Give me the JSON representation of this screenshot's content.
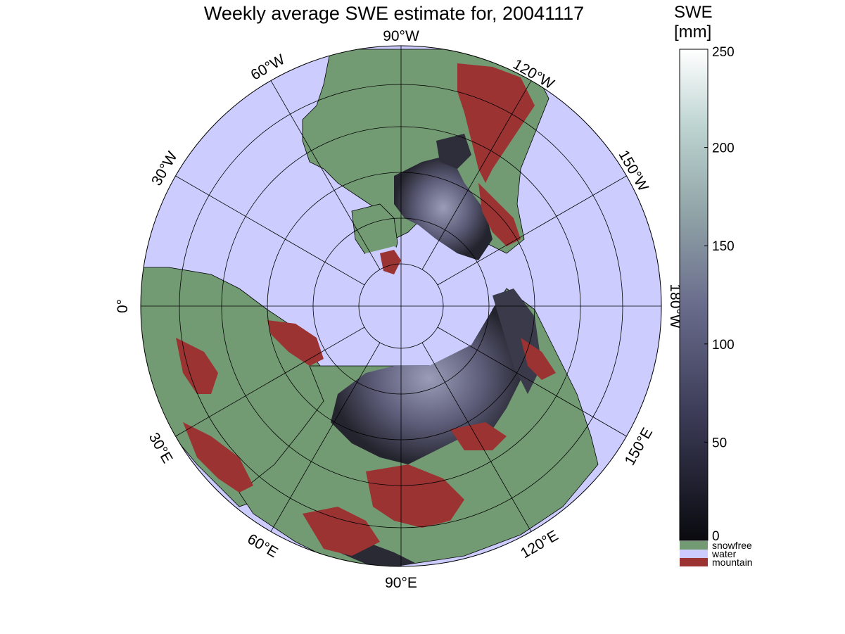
{
  "title": "Weekly average SWE estimate for, 20041117",
  "colorbar": {
    "title_line1": "SWE",
    "title_line2": "[mm]",
    "ticks": [
      "250",
      "200",
      "150",
      "100",
      "50",
      "0"
    ],
    "range": [
      0,
      250
    ],
    "colors": [
      "#0a0a0f",
      "#3a3a55",
      "#6a6c8c",
      "#8fa2a6",
      "#bcd3d0",
      "#ffffff"
    ]
  },
  "legend": {
    "items": [
      {
        "label": "snowfree",
        "color": "#739b73"
      },
      {
        "label": "water",
        "color": "#ccccff"
      },
      {
        "label": "mountain",
        "color": "#9b3333"
      }
    ]
  },
  "map": {
    "projection": "polar-stereographic-north",
    "longitude_labels": {
      "deg90W": "90°W",
      "deg120W": "120°W",
      "deg150W": "150°W",
      "deg180W": "180°W",
      "deg150E": "150°E",
      "deg120E": "120°E",
      "deg90E": "90°E",
      "deg60E": "60°E",
      "deg30E": "30°E",
      "deg0": "0°",
      "deg30W": "30°W",
      "deg60W": "60°W"
    },
    "colors": {
      "water": "#ccccff",
      "snowfree": "#739b73",
      "mountain": "#9b3333",
      "snow": "#4c4c66"
    }
  }
}
